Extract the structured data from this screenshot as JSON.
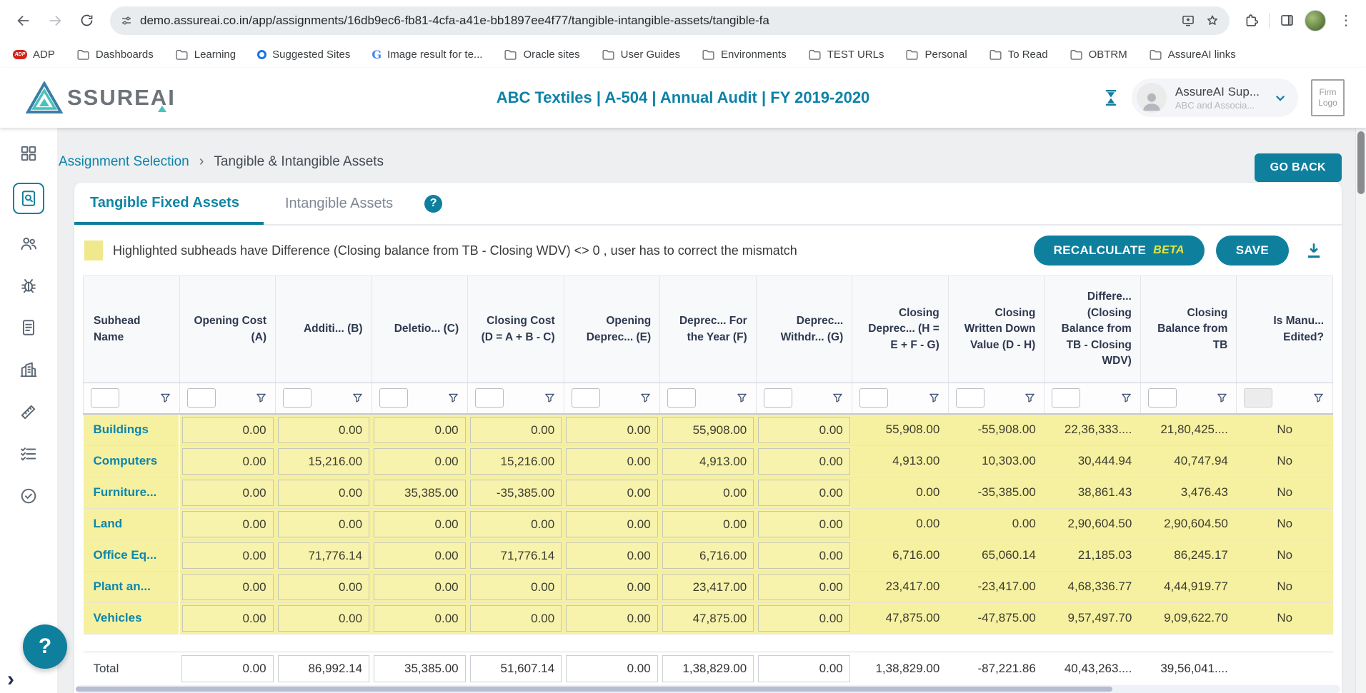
{
  "browser": {
    "url": "demo.assureai.co.in/app/assignments/16db9ec6-fb81-4cfa-a41e-bb1897ee4f77/tangible-intangible-assets/tangible-fa",
    "bookmarks": [
      {
        "label": "ADP",
        "icon": "adp-icon"
      },
      {
        "label": "Dashboards",
        "icon": "folder-icon"
      },
      {
        "label": "Learning",
        "icon": "folder-icon"
      },
      {
        "label": "Suggested Sites",
        "icon": "site-ring-icon"
      },
      {
        "label": "Image result for te...",
        "icon": "google-icon"
      },
      {
        "label": "Oracle sites",
        "icon": "folder-icon"
      },
      {
        "label": "User Guides",
        "icon": "folder-icon"
      },
      {
        "label": "Environments",
        "icon": "folder-icon"
      },
      {
        "label": "TEST URLs",
        "icon": "folder-icon"
      },
      {
        "label": "Personal",
        "icon": "folder-icon"
      },
      {
        "label": "To Read",
        "icon": "folder-icon"
      },
      {
        "label": "OBTRM",
        "icon": "folder-icon"
      },
      {
        "label": "AssureAI links",
        "icon": "folder-icon"
      }
    ]
  },
  "header": {
    "brand": "SSUREAI",
    "title": "ABC Textiles | A-504 | Annual Audit | FY 2019-2020",
    "user_name": "AssureAI Sup...",
    "user_org": "ABC and Associa...",
    "firm_logo": "Firm Logo"
  },
  "nav": {
    "breadcrumb": [
      "Assignment Selection",
      "Tangible & Intangible Assets"
    ],
    "go_back": "GO BACK"
  },
  "sidebar": {
    "items": [
      {
        "icon": "dashboard-grid-icon",
        "active": false
      },
      {
        "icon": "assignments-icon",
        "active": true
      },
      {
        "icon": "users-icon",
        "active": false
      },
      {
        "icon": "bug-icon",
        "active": false
      },
      {
        "icon": "report-icon",
        "active": false
      },
      {
        "icon": "building-icon",
        "active": false
      },
      {
        "icon": "tools-icon",
        "active": false
      },
      {
        "icon": "tasks-icon",
        "active": false
      },
      {
        "icon": "check-circle-icon",
        "active": false
      }
    ]
  },
  "tabs": {
    "active": "Tangible Fixed Assets",
    "inactive": "Intangible Assets"
  },
  "legend": {
    "text": "Highlighted subheads have Difference (Closing balance from TB - Closing WDV) <> 0 , user has to correct the mismatch"
  },
  "actions": {
    "recalculate": "RECALCULATE",
    "beta": "BETA",
    "save": "SAVE"
  },
  "misc": {
    "help": "?"
  },
  "table": {
    "columns": [
      "Subhead Name",
      "Opening Cost (A)",
      "Additi... (B)",
      "Deletio... (C)",
      "Closing Cost (D = A + B - C)",
      "Opening Deprec... (E)",
      "Deprec... For the Year (F)",
      "Deprec... Withdr... (G)",
      "Closing Deprec... (H = E + F - G)",
      "Closing Written Down Value (D - H)",
      "Differe... (Closing Balance from TB - Closing WDV)",
      "Closing Balance from TB",
      "Is Manu... Edited?"
    ],
    "boxed_value_count": 7,
    "rows": [
      {
        "name": "Buildings",
        "values": [
          "0.00",
          "0.00",
          "0.00",
          "0.00",
          "0.00",
          "55,908.00",
          "0.00",
          "55,908.00",
          "-55,908.00",
          "22,36,333....",
          "21,80,425....",
          "No"
        ]
      },
      {
        "name": "Computers",
        "values": [
          "0.00",
          "15,216.00",
          "0.00",
          "15,216.00",
          "0.00",
          "4,913.00",
          "0.00",
          "4,913.00",
          "10,303.00",
          "30,444.94",
          "40,747.94",
          "No"
        ]
      },
      {
        "name": "Furniture...",
        "values": [
          "0.00",
          "0.00",
          "35,385.00",
          "-35,385.00",
          "0.00",
          "0.00",
          "0.00",
          "0.00",
          "-35,385.00",
          "38,861.43",
          "3,476.43",
          "No"
        ]
      },
      {
        "name": "Land",
        "values": [
          "0.00",
          "0.00",
          "0.00",
          "0.00",
          "0.00",
          "0.00",
          "0.00",
          "0.00",
          "0.00",
          "2,90,604.50",
          "2,90,604.50",
          "No"
        ]
      },
      {
        "name": "Office Eq...",
        "values": [
          "0.00",
          "71,776.14",
          "0.00",
          "71,776.14",
          "0.00",
          "6,716.00",
          "0.00",
          "6,716.00",
          "65,060.14",
          "21,185.03",
          "86,245.17",
          "No"
        ]
      },
      {
        "name": "Plant an...",
        "values": [
          "0.00",
          "0.00",
          "0.00",
          "0.00",
          "0.00",
          "23,417.00",
          "0.00",
          "23,417.00",
          "-23,417.00",
          "4,68,336.77",
          "4,44,919.77",
          "No"
        ]
      },
      {
        "name": "Vehicles",
        "values": [
          "0.00",
          "0.00",
          "0.00",
          "0.00",
          "0.00",
          "47,875.00",
          "0.00",
          "47,875.00",
          "-47,875.00",
          "9,57,497.70",
          "9,09,622.70",
          "No"
        ]
      }
    ],
    "total": {
      "label": "Total",
      "values": [
        "0.00",
        "86,992.14",
        "35,385.00",
        "51,607.14",
        "0.00",
        "1,38,829.00",
        "0.00",
        "1,38,829.00",
        "-87,221.86",
        "40,43,263....",
        "39,56,041....",
        ""
      ]
    }
  }
}
